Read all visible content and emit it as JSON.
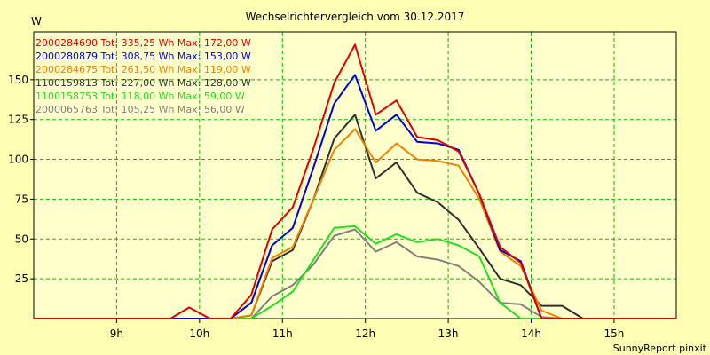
{
  "chart_data": {
    "type": "line",
    "title": "Wechselrichtervergleich vom 30.12.2017",
    "ylabel": "W",
    "xlabel": "",
    "credit": "SunnyReport pinxit",
    "colors": {
      "background": "#ffffb3",
      "plot_background": "#ffffcc",
      "grid": "#00c000",
      "axis": "#000000"
    },
    "x_range_hours": [
      8.0,
      15.75
    ],
    "ylim": [
      0,
      180
    ],
    "x_ticks": [
      {
        "hour": 9,
        "label": "9h"
      },
      {
        "hour": 10,
        "label": "10h"
      },
      {
        "hour": 11,
        "label": "11h"
      },
      {
        "hour": 12,
        "label": "12h"
      },
      {
        "hour": 13,
        "label": "13h"
      },
      {
        "hour": 14,
        "label": "14h"
      },
      {
        "hour": 15,
        "label": "15h"
      }
    ],
    "y_ticks": [
      25,
      50,
      75,
      100,
      125,
      150
    ],
    "grid": true,
    "x": [
      8.0,
      9.0,
      9.25,
      9.5,
      9.65,
      9.875,
      10.125,
      10.375,
      10.625,
      10.875,
      11.125,
      11.375,
      11.625,
      11.875,
      12.125,
      12.375,
      12.625,
      12.875,
      13.125,
      13.375,
      13.625,
      13.875,
      14.125,
      14.375,
      14.625,
      14.875,
      15.75
    ],
    "series": [
      {
        "name": "2000284690",
        "legend": "2000284690 Tot: 335,25 Wh Max: 172,00 W",
        "color": "#e00000",
        "values": [
          0,
          0,
          0,
          0,
          0,
          7,
          0,
          0,
          15,
          56,
          70,
          107,
          148,
          172,
          128,
          137,
          114,
          112,
          105,
          78,
          45,
          35,
          0,
          0,
          0,
          0,
          0
        ]
      },
      {
        "name": "2000280879",
        "legend": "2000280879 Tot: 308,75 Wh Max: 153,00 W",
        "color": "#0000e0",
        "values": [
          0,
          0,
          0,
          0,
          0,
          0,
          0,
          0,
          10,
          46,
          57,
          95,
          135,
          153,
          118,
          128,
          111,
          110,
          106,
          78,
          43,
          36,
          0,
          0,
          0,
          0,
          0
        ]
      },
      {
        "name": "2000284675",
        "legend": "2000284675 Tot: 261,50 Wh Max: 119,00 W",
        "color": "#f08000",
        "values": [
          0,
          0,
          0,
          0,
          0,
          0,
          0,
          0,
          2,
          38,
          45,
          75,
          106,
          119,
          98,
          110,
          100,
          99,
          96,
          75,
          42,
          33,
          5,
          0,
          0,
          0,
          0
        ]
      },
      {
        "name": "1100159813",
        "legend": "1100159813 Tot: 227,00 Wh Max: 128,00 W",
        "color": "#303030",
        "values": [
          0,
          0,
          0,
          0,
          0,
          0,
          0,
          0,
          2,
          36,
          43,
          75,
          113,
          128,
          88,
          98,
          79,
          73,
          62,
          44,
          25,
          21,
          8,
          8,
          0,
          0,
          0
        ]
      },
      {
        "name": "1100158753",
        "legend": "1100158753 Tot: 118,00 Wh Max: 59,00 W",
        "color": "#20e020",
        "values": [
          0,
          0,
          0,
          0,
          0,
          0,
          0,
          0,
          0,
          8,
          17,
          37,
          57,
          58,
          47,
          53,
          48,
          50,
          46,
          39,
          10,
          0,
          0,
          0,
          0,
          0,
          0
        ]
      },
      {
        "name": "2000065763",
        "legend": "2000065763 Tot: 105,25 Wh Max: 56,00 W",
        "color": "#808080",
        "values": [
          0,
          0,
          0,
          0,
          0,
          0,
          0,
          0,
          0,
          14,
          21,
          34,
          52,
          56,
          42,
          48,
          39,
          37,
          33,
          23,
          10,
          9,
          1,
          0,
          0,
          0,
          0
        ]
      }
    ]
  }
}
